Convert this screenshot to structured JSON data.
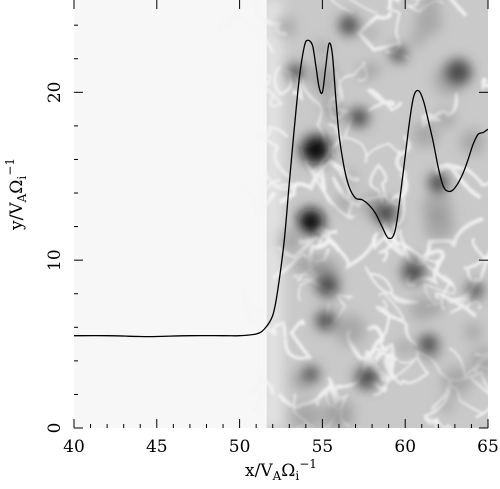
{
  "chart_data": {
    "type": "line",
    "title": "",
    "xlabel": {
      "base": "x/V",
      "sub1": "A",
      "mid": "Ω",
      "sub2": "i",
      "sup": "−1"
    },
    "ylabel": {
      "base": "y/V",
      "sub1": "A",
      "mid": "Ω",
      "sub2": "i",
      "sup": "−1"
    },
    "xlim": [
      40,
      65
    ],
    "ylim": [
      0,
      25.5
    ],
    "xticks": [
      40,
      45,
      50,
      55,
      60,
      65
    ],
    "yticks": [
      0,
      10,
      20
    ],
    "xtick_labels": [
      "40",
      "45",
      "50",
      "55",
      "60",
      "65"
    ],
    "ytick_labels": [
      "0",
      "10",
      "20"
    ],
    "grid": false,
    "background": {
      "type": "grayscale-density-map",
      "uniform_region_x": [
        40,
        52
      ],
      "uniform_color": "#f7f7f7",
      "dark_blobs": [
        {
          "x": 54.6,
          "y": 16.6,
          "r": 0.9
        },
        {
          "x": 54.3,
          "y": 12.3,
          "r": 0.8
        },
        {
          "x": 55.3,
          "y": 8.5,
          "r": 0.7
        },
        {
          "x": 55.2,
          "y": 6.4,
          "r": 0.6
        },
        {
          "x": 58.8,
          "y": 12.8,
          "r": 0.7
        },
        {
          "x": 57.2,
          "y": 18.5,
          "r": 0.6
        },
        {
          "x": 60.5,
          "y": 9.3,
          "r": 0.7
        },
        {
          "x": 62.0,
          "y": 14.6,
          "r": 0.6
        },
        {
          "x": 63.2,
          "y": 21.2,
          "r": 0.8
        },
        {
          "x": 56.6,
          "y": 24.0,
          "r": 0.6
        },
        {
          "x": 53.4,
          "y": 21.2,
          "r": 0.5
        },
        {
          "x": 61.4,
          "y": 5.0,
          "r": 0.6
        },
        {
          "x": 57.7,
          "y": 3.0,
          "r": 0.7
        },
        {
          "x": 54.3,
          "y": 3.2,
          "r": 0.5
        },
        {
          "x": 64.2,
          "y": 8.2,
          "r": 0.5
        },
        {
          "x": 59.6,
          "y": 22.3,
          "r": 0.5
        }
      ]
    },
    "series": [
      {
        "x": [
          40,
          42,
          44,
          45,
          47,
          49,
          50,
          51,
          51.5,
          52,
          52.3,
          52.7,
          53.0,
          53.3,
          53.6,
          53.9,
          54.1,
          54.4,
          54.6,
          54.8,
          55.0,
          55.2,
          55.4,
          55.6,
          55.8,
          56.0,
          56.3,
          56.6,
          57.0,
          57.4,
          57.8,
          58.2,
          58.6,
          59.0,
          59.4,
          59.8,
          60.2,
          60.5,
          60.8,
          61.1,
          61.4,
          61.7,
          62.0,
          62.3,
          62.6,
          62.9,
          63.2,
          63.5,
          63.8,
          64.1,
          64.4,
          64.7,
          65.0
        ],
        "y": [
          5.5,
          5.5,
          5.45,
          5.45,
          5.5,
          5.5,
          5.5,
          5.6,
          5.9,
          6.7,
          8.2,
          11.2,
          14.6,
          17.8,
          20.8,
          22.7,
          23.1,
          22.8,
          21.6,
          20.3,
          20.0,
          21.5,
          22.9,
          22.3,
          19.8,
          17.5,
          15.6,
          14.4,
          13.7,
          13.6,
          13.3,
          12.8,
          12.0,
          11.3,
          11.8,
          14.6,
          17.8,
          19.7,
          20.1,
          19.5,
          18.3,
          17.0,
          15.5,
          14.4,
          14.1,
          14.2,
          14.6,
          15.2,
          16.0,
          16.9,
          17.5,
          17.6,
          17.8
        ]
      }
    ]
  }
}
